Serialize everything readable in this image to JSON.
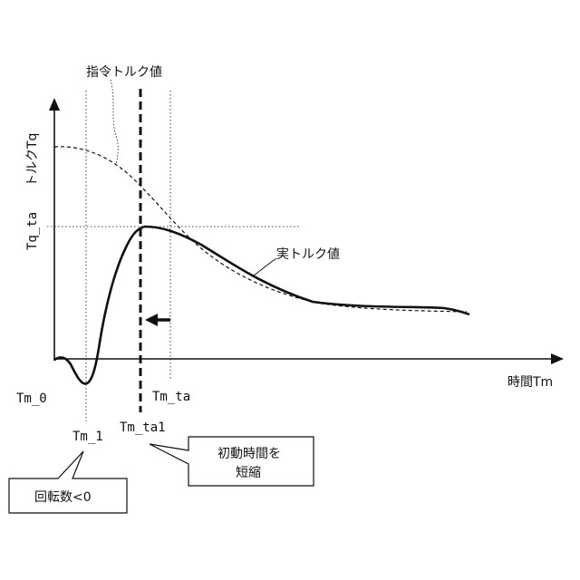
{
  "axes": {
    "y_label": "トルクTq",
    "x_label": "時間Tm"
  },
  "labels": {
    "command_torque": "指令トルク値",
    "actual_torque": "実トルク値",
    "tq_ta": "Tq_ta",
    "tm_0": "Tm_0",
    "tm_1": "Tm_1",
    "tm_ta": "Tm_ta",
    "tm_ta1": "Tm_ta1"
  },
  "callouts": {
    "rotation": "回転数<0",
    "shorten_line1": "初動時間を",
    "shorten_line2": "短縮"
  },
  "colors": {
    "ink": "#111111",
    "background": "#ffffff"
  }
}
